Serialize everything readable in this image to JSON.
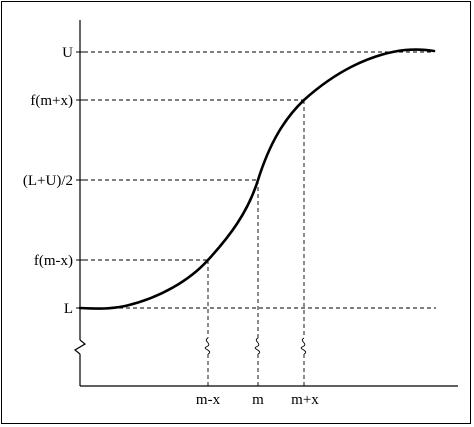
{
  "colors": {
    "line": "#000000",
    "background": "#ffffff"
  },
  "y_labels": {
    "upper": "U",
    "f_m_plus_x": "f(m+x)",
    "midpoint": "(L+U)/2",
    "f_m_minus_x": "f(m-x)",
    "lower": "L"
  },
  "x_labels": {
    "m_minus_x": "m-x",
    "m": "m",
    "m_plus_x": "m+x"
  }
}
